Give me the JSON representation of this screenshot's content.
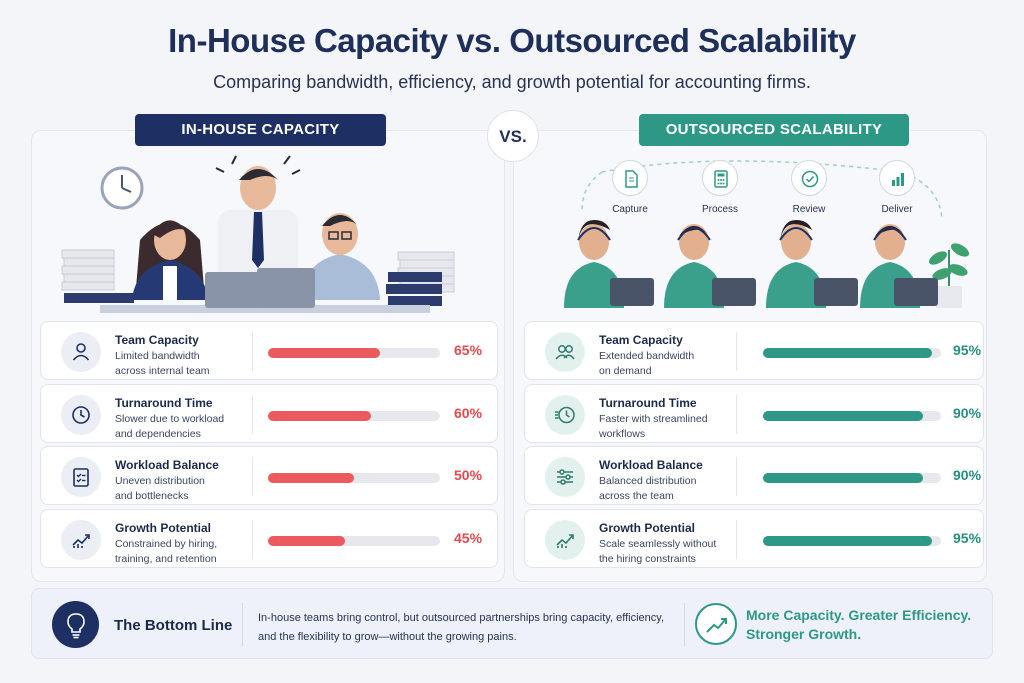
{
  "title": "In-House Capacity vs. Outsourced Scalability",
  "subtitle": "Comparing bandwidth, efficiency, and growth potential for accounting firms.",
  "vs_label": "VS.",
  "left": {
    "label": "IN-HOUSE CAPACITY",
    "metrics": [
      {
        "name": "Team Capacity",
        "desc1": "Limited bandwidth",
        "desc2": "across internal team",
        "value": 65,
        "display": "65%",
        "icon": "person-icon"
      },
      {
        "name": "Turnaround Time",
        "desc1": "Slower due to workload",
        "desc2": "and dependencies",
        "value": 60,
        "display": "60%",
        "icon": "clock-icon"
      },
      {
        "name": "Workload Balance",
        "desc1": "Uneven distribution",
        "desc2": "and bottlenecks",
        "value": 50,
        "display": "50%",
        "icon": "checklist-icon"
      },
      {
        "name": "Growth Potential",
        "desc1": "Constrained by hiring,",
        "desc2": "training, and retention",
        "value": 45,
        "display": "45%",
        "icon": "growth-chart-icon"
      }
    ]
  },
  "right": {
    "label": "OUTSOURCED SCALABILITY",
    "process": [
      "Capture",
      "Process",
      "Review",
      "Deliver"
    ],
    "metrics": [
      {
        "name": "Team Capacity",
        "desc1": "Extended bandwidth",
        "desc2": "on demand",
        "value": 95,
        "display": "95%",
        "icon": "group-icon"
      },
      {
        "name": "Turnaround Time",
        "desc1": "Faster with streamlined",
        "desc2": "workflows",
        "value": 90,
        "display": "90%",
        "icon": "fast-clock-icon"
      },
      {
        "name": "Workload Balance",
        "desc1": "Balanced distribution",
        "desc2": "across the team",
        "value": 90,
        "display": "90%",
        "icon": "sliders-icon"
      },
      {
        "name": "Growth Potential",
        "desc1": "Scale seamlessly without",
        "desc2": "the hiring constraints",
        "value": 95,
        "display": "95%",
        "icon": "growth-chart-icon"
      }
    ]
  },
  "bottom": {
    "title": "The Bottom Line",
    "text": "In-house teams bring control, but outsourced partnerships bring capacity, efficiency, and the flexibility to grow—without the growing pains.",
    "promo1": "More Capacity. Greater Efficiency.",
    "promo2": "Stronger Growth."
  },
  "colors": {
    "navy": "#1d2f63",
    "teal": "#2e9886",
    "red": "#eb5a5e"
  }
}
